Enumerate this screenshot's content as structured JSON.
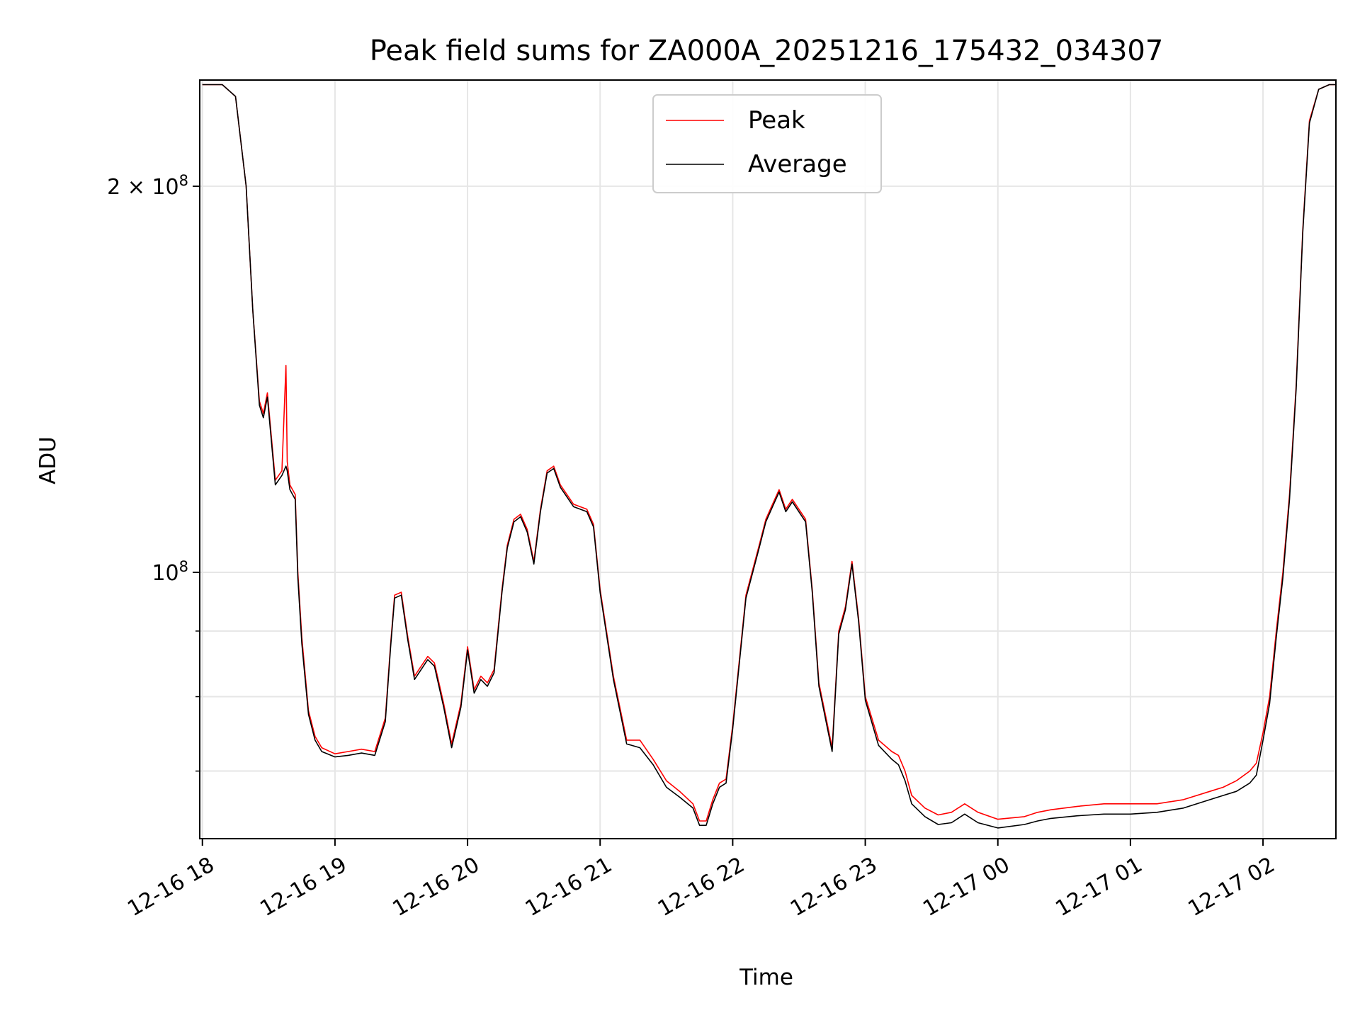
{
  "chart_data": {
    "type": "line",
    "title": "Peak field sums for ZA000A_20251216_175432_034307",
    "xlabel": "Time",
    "ylabel": "ADU",
    "yscale": "log",
    "ylim": [
      62000000,
      242000000
    ],
    "xlim_hours": [
      17.98,
      26.55
    ],
    "x_unit": "hours since 2025-12-16 00:00",
    "grid": true,
    "legend_position": "upper center",
    "x_ticks": [
      {
        "value": 18,
        "label": "12-16 18"
      },
      {
        "value": 19,
        "label": "12-16 19"
      },
      {
        "value": 20,
        "label": "12-16 20"
      },
      {
        "value": 21,
        "label": "12-16 21"
      },
      {
        "value": 22,
        "label": "12-16 22"
      },
      {
        "value": 23,
        "label": "12-16 23"
      },
      {
        "value": 24,
        "label": "12-17 00"
      },
      {
        "value": 25,
        "label": "12-17 01"
      },
      {
        "value": 26,
        "label": "12-17 02"
      }
    ],
    "y_major_ticks": [
      {
        "value": 100000000,
        "label_base": "10",
        "label_exp": "8",
        "label_prefix": ""
      },
      {
        "value": 200000000,
        "label_base": "10",
        "label_exp": "8",
        "label_prefix": "2 × "
      }
    ],
    "y_minor_ticks": [
      70000000,
      80000000,
      90000000
    ],
    "series": [
      {
        "name": "Peak",
        "color": "#ff0000",
        "x": [
          18.0,
          18.15,
          18.25,
          18.33,
          18.38,
          18.43,
          18.46,
          18.49,
          18.55,
          18.6,
          18.63,
          18.64,
          18.66,
          18.7,
          18.72,
          18.75,
          18.8,
          18.85,
          18.9,
          19.0,
          19.1,
          19.2,
          19.3,
          19.38,
          19.42,
          19.45,
          19.5,
          19.55,
          19.6,
          19.7,
          19.75,
          19.82,
          19.88,
          19.95,
          20.0,
          20.05,
          20.1,
          20.15,
          20.2,
          20.26,
          20.3,
          20.35,
          20.4,
          20.45,
          20.5,
          20.55,
          20.6,
          20.65,
          20.7,
          20.8,
          20.9,
          20.95,
          21.0,
          21.1,
          21.2,
          21.3,
          21.4,
          21.5,
          21.6,
          21.7,
          21.75,
          21.8,
          21.85,
          21.9,
          21.95,
          22.0,
          22.1,
          22.2,
          22.25,
          22.3,
          22.35,
          22.4,
          22.45,
          22.55,
          22.6,
          22.65,
          22.75,
          22.8,
          22.85,
          22.9,
          22.95,
          23.0,
          23.1,
          23.2,
          23.25,
          23.3,
          23.35,
          23.45,
          23.55,
          23.65,
          23.75,
          23.85,
          24.0,
          24.2,
          24.3,
          24.4,
          24.6,
          24.8,
          25.0,
          25.2,
          25.4,
          25.6,
          25.7,
          25.8,
          25.9,
          25.95,
          26.0,
          26.05,
          26.1,
          26.15,
          26.2,
          26.25,
          26.3,
          26.35,
          26.42,
          26.5,
          26.55
        ],
        "y": [
          240000000,
          240000000,
          235000000,
          200000000,
          160000000,
          136000000,
          133000000,
          138000000,
          118000000,
          120000000,
          145000000,
          122000000,
          117000000,
          115000000,
          100000000,
          89000000,
          78000000,
          74500000,
          73000000,
          72200000,
          72500000,
          72800000,
          72500000,
          77000000,
          88000000,
          96000000,
          96500000,
          89000000,
          83000000,
          86000000,
          85000000,
          79000000,
          73500000,
          79000000,
          87500000,
          81000000,
          83000000,
          82000000,
          84000000,
          97000000,
          105000000,
          110000000,
          111000000,
          108000000,
          102000000,
          112000000,
          120000000,
          121000000,
          117000000,
          113000000,
          112000000,
          109000000,
          97000000,
          83000000,
          74000000,
          74000000,
          71500000,
          68800000,
          67500000,
          66000000,
          64000000,
          64000000,
          66500000,
          68500000,
          69000000,
          76000000,
          96000000,
          105000000,
          110000000,
          113000000,
          116000000,
          112000000,
          114000000,
          110000000,
          97000000,
          82000000,
          73000000,
          90000000,
          94000000,
          102000000,
          92000000,
          80000000,
          74000000,
          72500000,
          72000000,
          70000000,
          67000000,
          65500000,
          64700000,
          65000000,
          66000000,
          65000000,
          64200000,
          64500000,
          65000000,
          65300000,
          65700000,
          66000000,
          66000000,
          66000000,
          66500000,
          67500000,
          68000000,
          68800000,
          70000000,
          71000000,
          75000000,
          80000000,
          90000000,
          100000000,
          115000000,
          140000000,
          185000000,
          225000000,
          238000000,
          240000000,
          240000000
        ]
      },
      {
        "name": "Average",
        "color": "#000000",
        "x": [
          18.0,
          18.15,
          18.25,
          18.33,
          18.38,
          18.43,
          18.46,
          18.49,
          18.55,
          18.6,
          18.63,
          18.64,
          18.66,
          18.7,
          18.72,
          18.75,
          18.8,
          18.85,
          18.9,
          19.0,
          19.1,
          19.2,
          19.3,
          19.38,
          19.42,
          19.45,
          19.5,
          19.55,
          19.6,
          19.7,
          19.75,
          19.82,
          19.88,
          19.95,
          20.0,
          20.05,
          20.1,
          20.15,
          20.2,
          20.26,
          20.3,
          20.35,
          20.4,
          20.45,
          20.5,
          20.55,
          20.6,
          20.65,
          20.7,
          20.8,
          20.9,
          20.95,
          21.0,
          21.1,
          21.2,
          21.3,
          21.4,
          21.5,
          21.6,
          21.7,
          21.75,
          21.8,
          21.85,
          21.9,
          21.95,
          22.0,
          22.1,
          22.2,
          22.25,
          22.3,
          22.35,
          22.4,
          22.45,
          22.55,
          22.6,
          22.65,
          22.75,
          22.8,
          22.85,
          22.9,
          22.95,
          23.0,
          23.1,
          23.2,
          23.25,
          23.3,
          23.35,
          23.45,
          23.55,
          23.65,
          23.75,
          23.85,
          24.0,
          24.2,
          24.3,
          24.4,
          24.6,
          24.8,
          25.0,
          25.2,
          25.4,
          25.6,
          25.7,
          25.8,
          25.9,
          25.95,
          26.0,
          26.05,
          26.1,
          26.15,
          26.2,
          26.25,
          26.3,
          26.35,
          26.42,
          26.5,
          26.55
        ],
        "y": [
          240000000,
          240000000,
          235000000,
          200000000,
          160000000,
          135000000,
          132000000,
          137000000,
          117000000,
          119000000,
          121000000,
          120000000,
          116000000,
          114000000,
          99000000,
          88000000,
          77500000,
          74000000,
          72500000,
          71800000,
          72000000,
          72300000,
          72000000,
          76500000,
          87500000,
          95500000,
          96000000,
          88500000,
          82500000,
          85500000,
          84500000,
          78500000,
          73000000,
          78500000,
          87000000,
          80500000,
          82500000,
          81500000,
          83500000,
          96500000,
          104500000,
          109500000,
          110500000,
          107500000,
          101500000,
          111500000,
          119500000,
          120500000,
          116500000,
          112500000,
          111500000,
          108500000,
          96500000,
          82500000,
          73500000,
          73000000,
          70800000,
          68000000,
          66800000,
          65500000,
          63500000,
          63500000,
          66000000,
          68000000,
          68500000,
          75500000,
          95500000,
          104500000,
          109500000,
          112500000,
          115500000,
          111500000,
          113500000,
          109500000,
          96500000,
          81500000,
          72500000,
          89500000,
          93500000,
          101500000,
          91500000,
          79500000,
          73300000,
          71500000,
          70800000,
          68800000,
          66000000,
          64500000,
          63600000,
          63800000,
          64800000,
          63800000,
          63200000,
          63600000,
          64000000,
          64300000,
          64600000,
          64800000,
          64800000,
          65000000,
          65500000,
          66500000,
          67000000,
          67500000,
          68500000,
          69500000,
          74000000,
          79000000,
          89000000,
          99000000,
          114000000,
          139000000,
          184000000,
          224000000,
          238000000,
          240000000,
          240000000
        ]
      }
    ]
  }
}
